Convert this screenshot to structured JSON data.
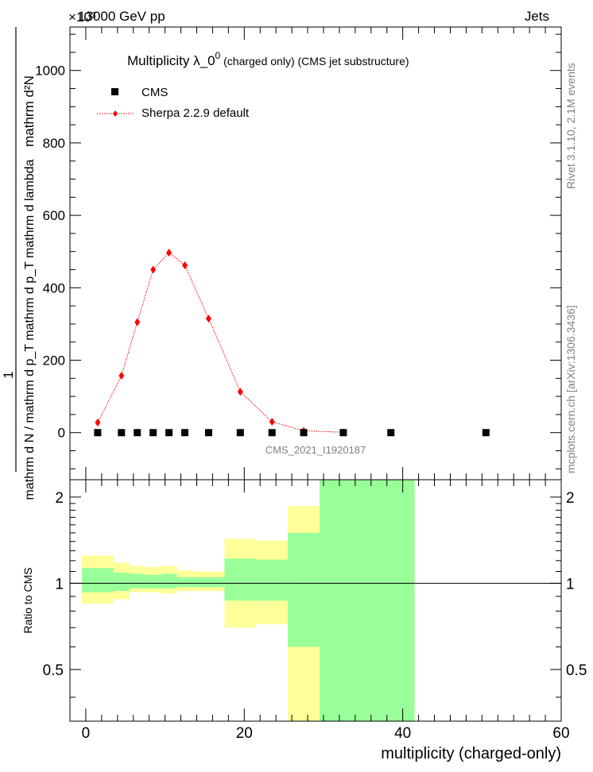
{
  "header": {
    "energy": "13000 GeV pp",
    "category": "Jets",
    "exponent_label": "×10³",
    "side_rivet": "Rivet 3.1.10,  2.1M events",
    "side_source": "mcplots.cern.ch [arXiv:1306.3436]"
  },
  "chart_data": [
    {
      "type": "scatter",
      "title": "Multiplicity  λ_0⁰ (charged only) (CMS jet substructure)",
      "title_main": "Multiplicity  λ_0",
      "title_sup": "0",
      "title_rest": " (charged only) (CMS jet substructure)",
      "ylabel_numerator": "1",
      "ylabel_num_text": "mathrm d²N",
      "ylabel_denominator": "mathrm d N / mathrm d p_T mathrm d p_T mathrm d lambda",
      "y_scale_note": "values in units of 10³",
      "xlim": [
        -2,
        60
      ],
      "ylim": [
        -130,
        1120
      ],
      "yticks": [
        0,
        200,
        400,
        600,
        800,
        1000
      ],
      "xticks": [
        0,
        20,
        40,
        60
      ],
      "watermark": "CMS_2021_I1920187",
      "legend_position": "top-left",
      "series": [
        {
          "name": "CMS",
          "color": "#000000",
          "marker": "square",
          "x": [
            1.5,
            4.5,
            6.5,
            8.5,
            10.5,
            12.5,
            15.5,
            19.5,
            23.5,
            27.5,
            32.5,
            38.5,
            50.5
          ],
          "y": [
            0,
            0,
            0,
            0,
            0,
            0,
            0,
            0,
            0,
            0,
            0,
            0,
            0
          ]
        },
        {
          "name": "Sherpa 2.2.9 default",
          "color": "#ff0000",
          "marker": "diamond",
          "line": "dotted",
          "x": [
            1.5,
            4.5,
            6.5,
            8.5,
            10.5,
            12.5,
            15.5,
            19.5,
            23.5,
            27.5,
            32.5
          ],
          "y": [
            28,
            157,
            305,
            450,
            497,
            462,
            315,
            113,
            30,
            5,
            1
          ]
        }
      ]
    },
    {
      "type": "area",
      "ylabel": "Ratio to CMS",
      "xlabel": "multiplicity (charged-only)",
      "xlim": [
        -2,
        60
      ],
      "ylim": [
        0.33,
        2.3
      ],
      "yscale": "log",
      "yticks": [
        0.5,
        1,
        2
      ],
      "xticks": [
        0,
        20,
        40,
        60
      ],
      "bins": [
        {
          "lo": -0.5,
          "hi": 3.5,
          "yellow": [
            0.85,
            1.25
          ],
          "green": [
            0.93,
            1.13
          ]
        },
        {
          "lo": 3.5,
          "hi": 5.5,
          "yellow": [
            0.88,
            1.18
          ],
          "green": [
            0.94,
            1.09
          ]
        },
        {
          "lo": 5.5,
          "hi": 7.5,
          "yellow": [
            0.93,
            1.15
          ],
          "green": [
            0.96,
            1.08
          ]
        },
        {
          "lo": 7.5,
          "hi": 9.5,
          "yellow": [
            0.93,
            1.14
          ],
          "green": [
            0.96,
            1.07
          ]
        },
        {
          "lo": 9.5,
          "hi": 11.5,
          "yellow": [
            0.92,
            1.15
          ],
          "green": [
            0.96,
            1.08
          ]
        },
        {
          "lo": 11.5,
          "hi": 13.5,
          "yellow": [
            0.94,
            1.11
          ],
          "green": [
            0.97,
            1.05
          ]
        },
        {
          "lo": 13.5,
          "hi": 17.5,
          "yellow": [
            0.94,
            1.1
          ],
          "green": [
            0.97,
            1.05
          ]
        },
        {
          "lo": 17.5,
          "hi": 21.5,
          "yellow": [
            0.7,
            1.43
          ],
          "green": [
            0.87,
            1.22
          ]
        },
        {
          "lo": 21.5,
          "hi": 25.5,
          "yellow": [
            0.72,
            1.41
          ],
          "green": [
            0.87,
            1.21
          ]
        },
        {
          "lo": 25.5,
          "hi": 29.5,
          "yellow": [
            0.33,
            1.86
          ],
          "green": [
            0.6,
            1.5
          ]
        },
        {
          "lo": 29.5,
          "hi": 41.5,
          "yellow": [
            0.33,
            2.3
          ],
          "green": [
            0.33,
            2.3
          ]
        }
      ],
      "reference_line": 1
    }
  ]
}
